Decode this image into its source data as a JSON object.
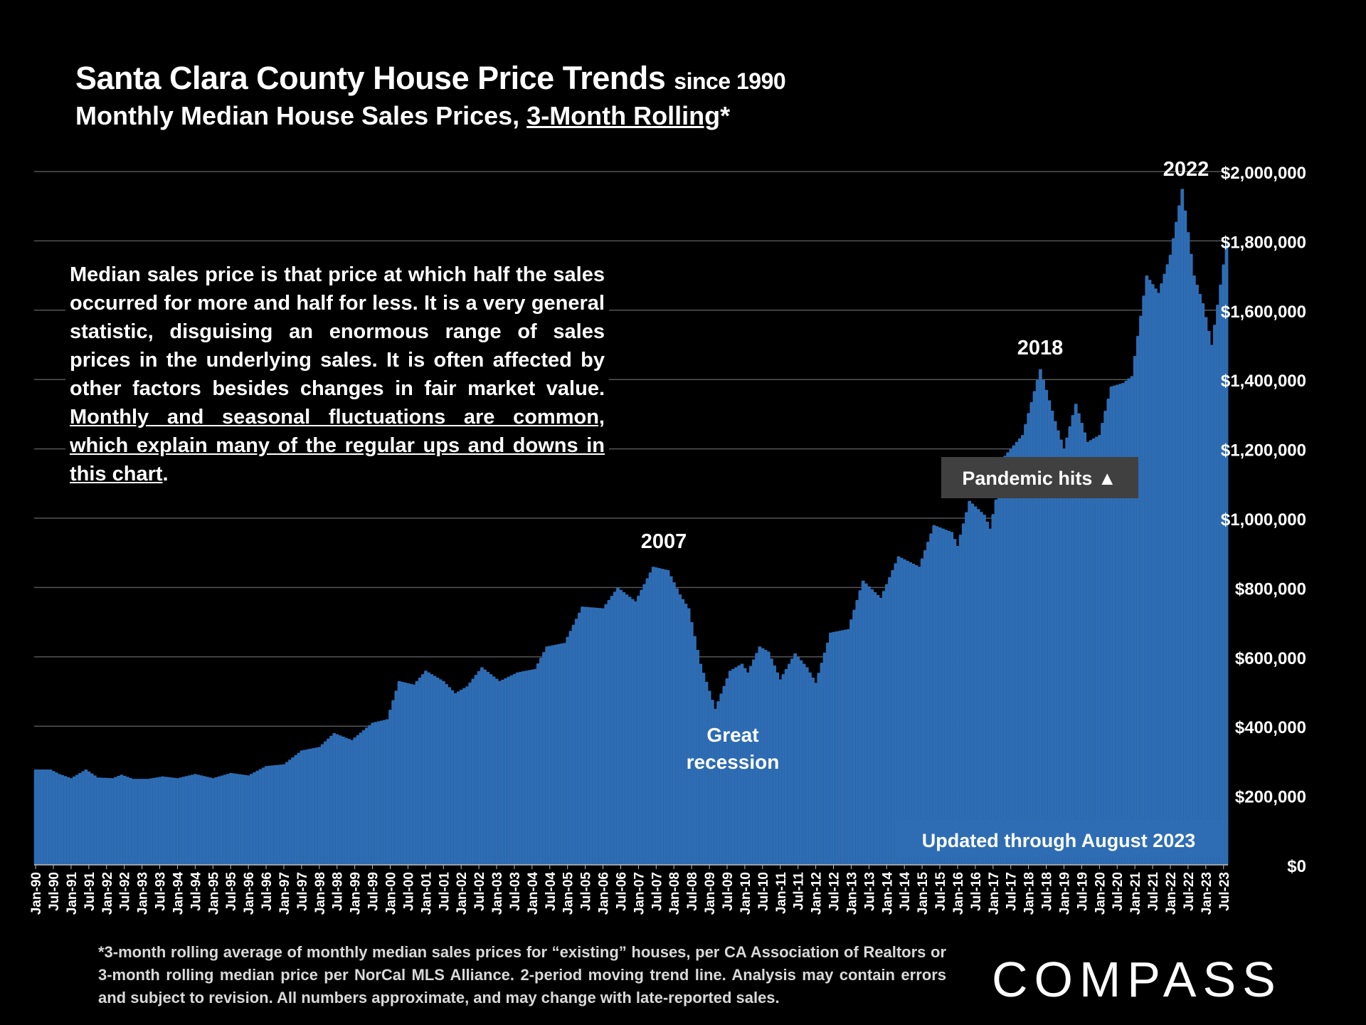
{
  "header": {
    "title_main": "Santa Clara County House Price Trends",
    "title_since": "since 1990",
    "subtitle_prefix": "Monthly Median House Sales Prices, ",
    "subtitle_underlined": "3-Month Rolling",
    "subtitle_suffix": "*"
  },
  "note": {
    "text_plain": "Median sales price is that price at which half the sales occurred for more and half for less. It is a very general statistic, disguising an enormous range of sales prices in the underlying sales. It is often affected by other factors besides changes in fair market value. ",
    "text_underlined": "Monthly and seasonal fluctuations are common, which explain many of the regular ups and downs in this chart",
    "text_end": "."
  },
  "footnote": "*3-month rolling average of monthly median sales prices for “existing” houses, per CA Association of Realtors or 3-month rolling median price per NorCal MLS Alliance. 2-period moving trend line. Analysis may contain errors and subject to revision. All numbers approximate, and may change with late-reported sales.",
  "brand": {
    "logo_text": "COMPASS"
  },
  "colors": {
    "bar": "#2e6db4",
    "background": "#000000",
    "gridline": "#555555",
    "annotation_box": "#404040"
  },
  "chart_data": {
    "type": "bar",
    "title": "Santa Clara County House Price Trends since 1990",
    "ylabel": "",
    "xlabel": "",
    "ylim": [
      0,
      2000000
    ],
    "yticks": [
      0,
      200000,
      400000,
      600000,
      800000,
      1000000,
      1200000,
      1400000,
      1600000,
      1800000,
      2000000
    ],
    "ytick_labels": [
      "$0",
      "$200,000",
      "$400,000",
      "$600,000",
      "$800,000",
      "$1,000,000",
      "$1,200,000",
      "$1,400,000",
      "$1,600,000",
      "$1,800,000",
      "$2,000,000"
    ],
    "x_range": [
      "Jan-90",
      "Aug-23"
    ],
    "xtick_labels": [
      "Jan-90",
      "Jul-90",
      "Jan-91",
      "Jul-91",
      "Jan-92",
      "Jul-92",
      "Jan-93",
      "Jul-93",
      "Jan-94",
      "Jul-94",
      "Jan-95",
      "Jul-95",
      "Jan-96",
      "Jul-96",
      "Jan-97",
      "Jul-97",
      "Jan-98",
      "Jul-98",
      "Jan-99",
      "Jul-99",
      "Jan-00",
      "Jul-00",
      "Jan-01",
      "Jul-01",
      "Jan-02",
      "Jul-02",
      "Jan-03",
      "Jul-03",
      "Jan-04",
      "Jul-04",
      "Jan-05",
      "Jul-05",
      "Jan-06",
      "Jul-06",
      "Jan-07",
      "Jul-07",
      "Jan-08",
      "Jul-08",
      "Jan-09",
      "Jul-09",
      "Jan-10",
      "Jul-10",
      "Jan-11",
      "Jul-11",
      "Jan-12",
      "Jul-12",
      "Jan-13",
      "Jul-13",
      "Jan-14",
      "Jul-14",
      "Jan-15",
      "Jul-15",
      "Jan-16",
      "Jul-16",
      "Jan-17",
      "Jul-17",
      "Jan-18",
      "Jul-18",
      "Jan-19",
      "Jul-19",
      "Jan-20",
      "Jul-20",
      "Jan-21",
      "Jul-21",
      "Jan-22",
      "Jul-22",
      "Jan-23",
      "Jul-23"
    ],
    "anchors": [
      [
        "1990-01",
        275000
      ],
      [
        "1990-06",
        275000
      ],
      [
        "1990-09",
        262000
      ],
      [
        "1991-01",
        250000
      ],
      [
        "1991-06",
        275000
      ],
      [
        "1991-10",
        252000
      ],
      [
        "1992-03",
        250000
      ],
      [
        "1992-06",
        260000
      ],
      [
        "1992-10",
        248000
      ],
      [
        "1993-03",
        248000
      ],
      [
        "1993-08",
        255000
      ],
      [
        "1994-01",
        250000
      ],
      [
        "1994-07",
        262000
      ],
      [
        "1995-01",
        250000
      ],
      [
        "1995-07",
        265000
      ],
      [
        "1996-01",
        258000
      ],
      [
        "1996-07",
        285000
      ],
      [
        "1997-01",
        290000
      ],
      [
        "1997-07",
        330000
      ],
      [
        "1998-01",
        340000
      ],
      [
        "1998-06",
        380000
      ],
      [
        "1998-12",
        360000
      ],
      [
        "1999-07",
        410000
      ],
      [
        "1999-12",
        420000
      ],
      [
        "2000-04",
        530000
      ],
      [
        "2000-09",
        520000
      ],
      [
        "2001-01",
        560000
      ],
      [
        "2001-07",
        530000
      ],
      [
        "2001-11",
        495000
      ],
      [
        "2002-03",
        515000
      ],
      [
        "2002-08",
        570000
      ],
      [
        "2003-02",
        530000
      ],
      [
        "2003-08",
        555000
      ],
      [
        "2004-02",
        565000
      ],
      [
        "2004-06",
        630000
      ],
      [
        "2004-12",
        640000
      ],
      [
        "2005-06",
        745000
      ],
      [
        "2006-01",
        740000
      ],
      [
        "2006-06",
        800000
      ],
      [
        "2006-12",
        760000
      ],
      [
        "2007-06",
        860000
      ],
      [
        "2007-11",
        850000
      ],
      [
        "2008-03",
        780000
      ],
      [
        "2008-06",
        740000
      ],
      [
        "2008-10",
        580000
      ],
      [
        "2009-03",
        450000
      ],
      [
        "2009-08",
        560000
      ],
      [
        "2009-12",
        580000
      ],
      [
        "2010-02",
        555000
      ],
      [
        "2010-06",
        630000
      ],
      [
        "2010-09",
        615000
      ],
      [
        "2011-01",
        535000
      ],
      [
        "2011-06",
        610000
      ],
      [
        "2011-10",
        570000
      ],
      [
        "2012-01",
        525000
      ],
      [
        "2012-06",
        670000
      ],
      [
        "2012-12",
        680000
      ],
      [
        "2013-05",
        820000
      ],
      [
        "2013-11",
        770000
      ],
      [
        "2014-05",
        890000
      ],
      [
        "2014-12",
        860000
      ],
      [
        "2015-05",
        980000
      ],
      [
        "2015-11",
        960000
      ],
      [
        "2016-01",
        920000
      ],
      [
        "2016-05",
        1050000
      ],
      [
        "2016-10",
        1010000
      ],
      [
        "2016-12",
        970000
      ],
      [
        "2017-05",
        1180000
      ],
      [
        "2017-11",
        1240000
      ],
      [
        "2018-05",
        1430000
      ],
      [
        "2018-10",
        1280000
      ],
      [
        "2019-01",
        1200000
      ],
      [
        "2019-05",
        1330000
      ],
      [
        "2019-09",
        1220000
      ],
      [
        "2020-01",
        1240000
      ],
      [
        "2020-05",
        1380000
      ],
      [
        "2020-09",
        1390000
      ],
      [
        "2020-12",
        1410000
      ],
      [
        "2021-05",
        1700000
      ],
      [
        "2021-09",
        1650000
      ],
      [
        "2022-01",
        1760000
      ],
      [
        "2022-05",
        1950000
      ],
      [
        "2022-09",
        1700000
      ],
      [
        "2022-12",
        1620000
      ],
      [
        "2023-03",
        1500000
      ],
      [
        "2023-08",
        1790000
      ]
    ],
    "annotations": {
      "y2007": "2007",
      "y2018": "2018",
      "y2022": "2022",
      "recession_line1": "Great",
      "recession_line2": "recession",
      "pandemic": "Pandemic hits ▲",
      "updated": "Updated through August 2023"
    }
  }
}
